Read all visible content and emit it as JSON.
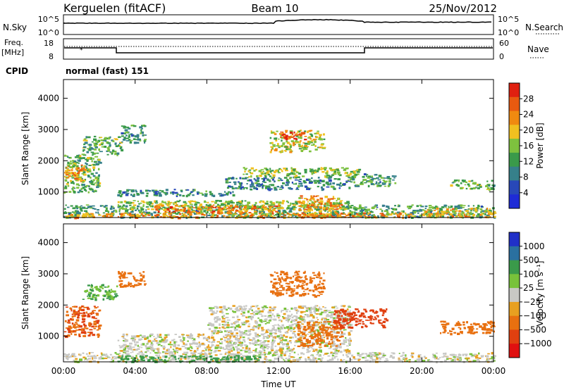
{
  "header": {
    "station": "Kerguelen (fitACF)",
    "beam": "Beam 10",
    "date": "25/Nov/2012"
  },
  "panels": {
    "nsky": {
      "left_label": "N.Sky",
      "right_label": "N.Search",
      "tick_top": "10^5",
      "tick_bottom": "10^0"
    },
    "freq": {
      "left_label_1": "Freq.",
      "left_label_2": "[MHz]",
      "right_label": "Nave",
      "left_ticks": [
        "18",
        "8"
      ],
      "right_ticks": [
        "60",
        "0"
      ]
    },
    "cpid": {
      "label": "CPID",
      "value": "normal (fast) 151"
    }
  },
  "colors": {
    "power": [
      "#1e2bd6",
      "#2848b8",
      "#36808a",
      "#3a9a4a",
      "#7ec13e",
      "#f0c020",
      "#f08a10",
      "#e85a10",
      "#e02010"
    ],
    "velocity": [
      "#2030c8",
      "#2a70a0",
      "#3a9a4a",
      "#78c23a",
      "#c8c8c4",
      "#e8a020",
      "#e87010",
      "#e04010",
      "#e01010"
    ]
  },
  "chart_data": [
    {
      "type": "heatmap",
      "title": "Power",
      "ylabel": "Slant Range [km]",
      "xlabel": "Time UT",
      "x_ticks": [
        "00:00",
        "04:00",
        "08:00",
        "12:00",
        "16:00",
        "20:00",
        "00:00"
      ],
      "y_ticks": [
        "1000",
        "2000",
        "3000",
        "4000"
      ],
      "colorbar": {
        "label": "Power [dB]",
        "ticks": [
          "4",
          "8",
          "12",
          "16",
          "20",
          "24",
          "28"
        ]
      },
      "regions": [
        {
          "t0": 0.0,
          "t1": 24.0,
          "r0": 200,
          "r1": 600,
          "v": 12
        },
        {
          "t0": 0.0,
          "t1": 24.0,
          "r0": 200,
          "r1": 350,
          "v": 22
        },
        {
          "t0": 0.0,
          "t1": 2.0,
          "r0": 1000,
          "r1": 2200,
          "v": 14
        },
        {
          "t0": 0.0,
          "t1": 1.2,
          "r0": 1300,
          "r1": 1900,
          "v": 22
        },
        {
          "t0": 1.0,
          "t1": 3.2,
          "r0": 2200,
          "r1": 2800,
          "v": 14
        },
        {
          "t0": 3.2,
          "t1": 4.5,
          "r0": 2600,
          "r1": 3200,
          "v": 12
        },
        {
          "t0": 3.0,
          "t1": 9.5,
          "r0": 900,
          "r1": 1100,
          "v": 10
        },
        {
          "t0": 3.0,
          "t1": 16.0,
          "r0": 450,
          "r1": 750,
          "v": 16
        },
        {
          "t0": 5.0,
          "t1": 12.0,
          "r0": 350,
          "r1": 600,
          "v": 24
        },
        {
          "t0": 9.0,
          "t1": 16.0,
          "r0": 1100,
          "r1": 1500,
          "v": 10
        },
        {
          "t0": 10.0,
          "t1": 16.5,
          "r0": 1500,
          "r1": 1800,
          "v": 16
        },
        {
          "t0": 11.5,
          "t1": 14.5,
          "r0": 2300,
          "r1": 3000,
          "v": 18
        },
        {
          "t0": 12.0,
          "t1": 13.5,
          "r0": 2700,
          "r1": 2950,
          "v": 28
        },
        {
          "t0": 13.0,
          "t1": 15.5,
          "r0": 200,
          "r1": 900,
          "v": 22
        },
        {
          "t0": 16.0,
          "t1": 18.5,
          "r0": 1200,
          "r1": 1600,
          "v": 12
        },
        {
          "t0": 21.5,
          "t1": 24.0,
          "r0": 1100,
          "r1": 1400,
          "v": 14
        },
        {
          "t0": 20.0,
          "t1": 24.0,
          "r0": 300,
          "r1": 500,
          "v": 20
        }
      ]
    },
    {
      "type": "heatmap",
      "title": "Velocity",
      "ylabel": "Slant Range [km]",
      "xlabel": "Time UT",
      "x_ticks": [
        "00:00",
        "04:00",
        "08:00",
        "12:00",
        "16:00",
        "20:00",
        "00:00"
      ],
      "y_ticks": [
        "1000",
        "2000",
        "3000",
        "4000"
      ],
      "colorbar": {
        "label": "Velocity [m s⁻¹]",
        "ticks": [
          "1000",
          "500",
          "100",
          "25",
          "−25",
          "−100",
          "−500",
          "−1000"
        ]
      },
      "regions": [
        {
          "t0": 0.0,
          "t1": 24.0,
          "r0": 200,
          "r1": 500,
          "v": 0
        },
        {
          "t0": 0.0,
          "t1": 2.0,
          "r0": 1000,
          "r1": 2000,
          "v": -500
        },
        {
          "t0": 1.0,
          "t1": 3.0,
          "r0": 2200,
          "r1": 2700,
          "v": 100
        },
        {
          "t0": 3.0,
          "t1": 4.5,
          "r0": 2600,
          "r1": 3100,
          "v": -300
        },
        {
          "t0": 3.0,
          "t1": 16.0,
          "r0": 500,
          "r1": 1100,
          "v": 0
        },
        {
          "t0": 8.0,
          "t1": 16.0,
          "r0": 1100,
          "r1": 2000,
          "v": 0
        },
        {
          "t0": 3.0,
          "t1": 11.0,
          "r0": 200,
          "r1": 400,
          "v": 150
        },
        {
          "t0": 11.5,
          "t1": 14.5,
          "r0": 2300,
          "r1": 3100,
          "v": -300
        },
        {
          "t0": 13.0,
          "t1": 15.5,
          "r0": 700,
          "r1": 1500,
          "v": -300
        },
        {
          "t0": 15.0,
          "t1": 18.0,
          "r0": 1300,
          "r1": 1900,
          "v": -700
        },
        {
          "t0": 21.0,
          "t1": 24.0,
          "r0": 1100,
          "r1": 1500,
          "v": -200
        }
      ]
    }
  ]
}
